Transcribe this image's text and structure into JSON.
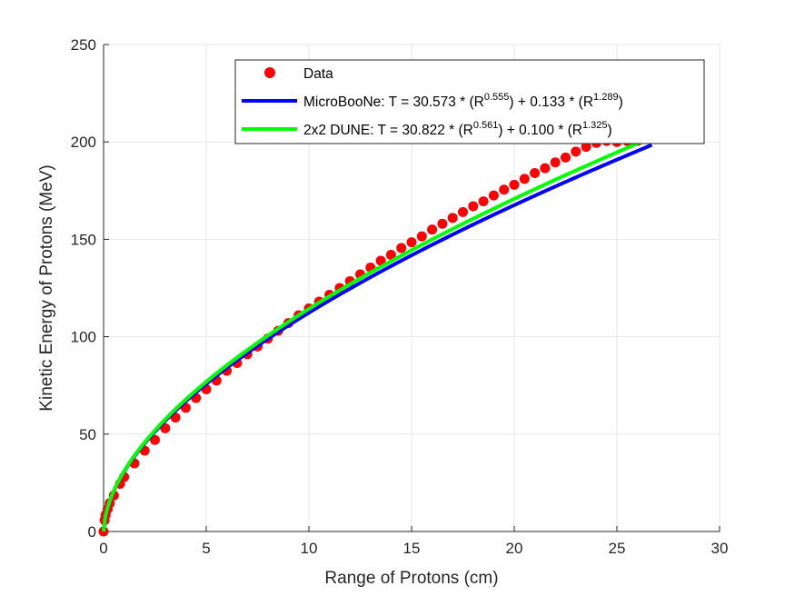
{
  "chart_data": {
    "type": "scatter",
    "xlabel": "Range of Protons (cm)",
    "ylabel": "Kinetic Energy of Protons (MeV)",
    "xlim": [
      0,
      30
    ],
    "ylim": [
      0,
      250
    ],
    "xticks": [
      "0",
      "5",
      "10",
      "15",
      "20",
      "25",
      "30"
    ],
    "yticks": [
      "0",
      "50",
      "100",
      "150",
      "200",
      "250"
    ],
    "grid": true,
    "legend_position": "top-right",
    "series": [
      {
        "name": "Data",
        "kind": "markers",
        "color": "#ff0000",
        "x": [
          0.0,
          0.05,
          0.1,
          0.2,
          0.3,
          0.5,
          0.8,
          1.0,
          1.5,
          2.0,
          2.5,
          3.0,
          3.5,
          4.0,
          4.5,
          5.0,
          5.5,
          6.0,
          6.5,
          7.0,
          7.5,
          8.0,
          8.5,
          9.0,
          9.5,
          10.0,
          10.5,
          11.0,
          11.5,
          12.0,
          12.5,
          13.0,
          13.5,
          14.0,
          14.5,
          15.0,
          15.5,
          16.0,
          16.5,
          17.0,
          17.5,
          18.0,
          18.5,
          19.0,
          19.5,
          20.0,
          20.5,
          21.0,
          21.5,
          22.0,
          22.5,
          23.0,
          23.5,
          24.0,
          24.5,
          25.0,
          25.5,
          26.0
        ],
        "y": [
          0.0,
          5.8,
          8.5,
          11.5,
          14.5,
          18.5,
          24.5,
          28.0,
          35.0,
          41.5,
          47.0,
          53.0,
          58.5,
          63.5,
          68.5,
          73.0,
          77.5,
          82.5,
          86.5,
          91.0,
          95.0,
          99.0,
          103.0,
          107.0,
          111.0,
          114.5,
          118.0,
          121.5,
          125.0,
          128.5,
          132.0,
          135.5,
          139.0,
          142.0,
          145.5,
          148.5,
          151.5,
          155.0,
          158.0,
          161.0,
          164.0,
          167.0,
          169.5,
          172.5,
          175.5,
          178.0,
          181.0,
          184.0,
          186.5,
          189.5,
          192.0,
          195.0,
          197.5,
          199.5,
          200.5,
          200.0,
          200.5,
          200.5
        ]
      },
      {
        "name": "MicroBooNe: T = 30.573 * (R^0.555) + 0.133 * (R^1.289)",
        "kind": "line",
        "color": "#0000ff",
        "formula": {
          "a": 30.573,
          "p": 0.555,
          "b": 0.133,
          "q": 1.289
        },
        "x_range": [
          0,
          26.7
        ]
      },
      {
        "name": "2x2 DUNE: T = 30.822 * (R^0.561) + 0.100 * (R^1.325)",
        "kind": "line",
        "color": "#00ff00",
        "formula": {
          "a": 30.822,
          "p": 0.561,
          "b": 0.1,
          "q": 1.325
        },
        "x_range": [
          0,
          26.1
        ]
      }
    ],
    "legend": {
      "data_label": "Data",
      "micro_prefix": "MicroBooNe: T = 30.573 * (R",
      "micro_exp1": "0.555",
      "micro_mid": ") + 0.133 * (R",
      "micro_exp2": "1.289",
      "micro_suffix": ")",
      "dune_prefix": "2x2 DUNE: T = 30.822 * (R",
      "dune_exp1": "0.561",
      "dune_mid": ") + 0.100 * (R",
      "dune_exp2": "1.325",
      "dune_suffix": ")"
    }
  }
}
